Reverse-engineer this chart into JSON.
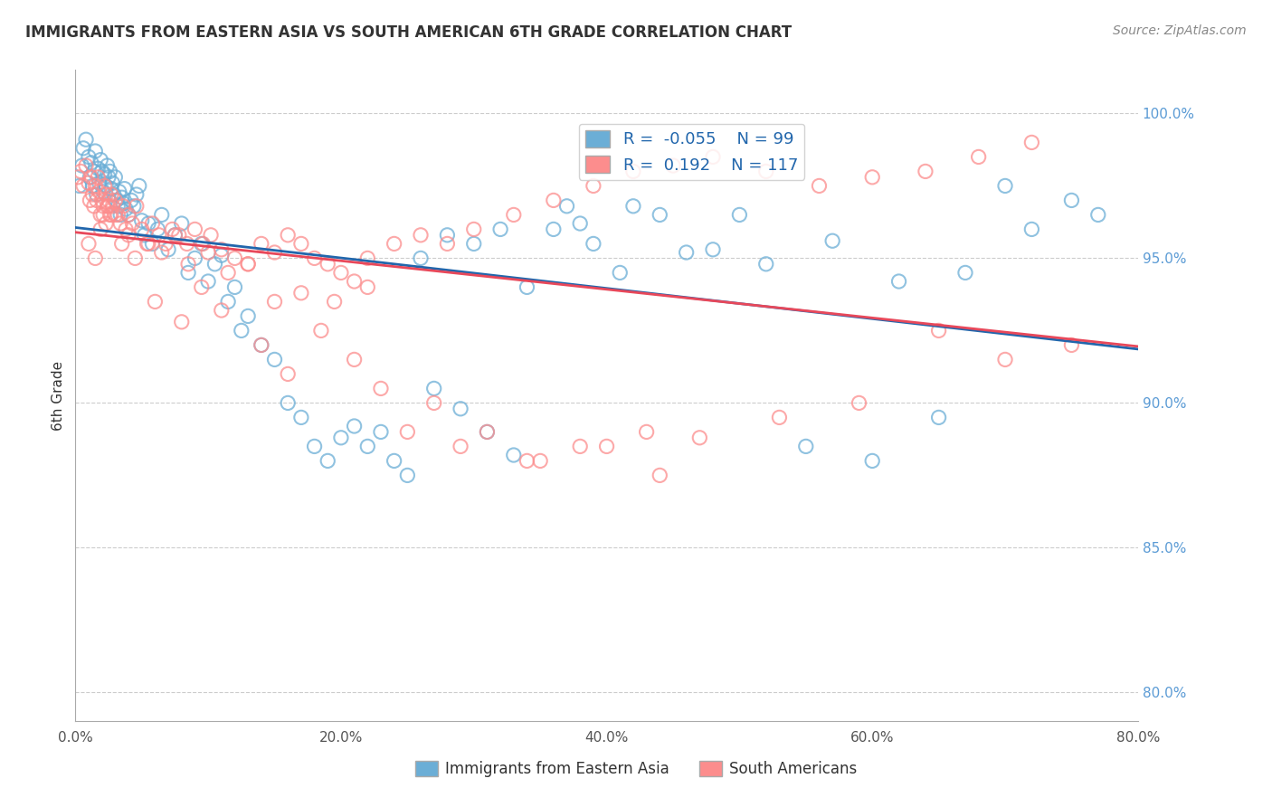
{
  "title": "IMMIGRANTS FROM EASTERN ASIA VS SOUTH AMERICAN 6TH GRADE CORRELATION CHART",
  "source": "Source: ZipAtlas.com",
  "xlabel_bottom": "",
  "ylabel": "6th Grade",
  "x_tick_labels": [
    "0.0%",
    "20.0%",
    "40.0%",
    "60.0%",
    "80.0%"
  ],
  "x_tick_values": [
    0.0,
    20.0,
    40.0,
    60.0,
    80.0
  ],
  "y_tick_labels_right": [
    "100.0%",
    "95.0%",
    "90.0%",
    "85.0%",
    "80.0%"
  ],
  "y_tick_values_right": [
    100.0,
    95.0,
    90.0,
    85.0,
    80.0
  ],
  "xlim": [
    0.0,
    80.0
  ],
  "ylim": [
    79.0,
    101.5
  ],
  "blue_R": -0.055,
  "blue_N": 99,
  "pink_R": 0.192,
  "pink_N": 117,
  "blue_color": "#6baed6",
  "pink_color": "#fc8d8d",
  "blue_line_color": "#2166ac",
  "pink_line_color": "#e8485a",
  "legend_label_blue": "Immigrants from Eastern Asia",
  "legend_label_pink": "South Americans",
  "blue_scatter_x": [
    0.3,
    0.5,
    0.6,
    0.8,
    1.0,
    1.1,
    1.2,
    1.3,
    1.4,
    1.5,
    1.6,
    1.7,
    1.8,
    1.9,
    2.0,
    2.1,
    2.2,
    2.3,
    2.4,
    2.5,
    2.6,
    2.7,
    2.8,
    2.9,
    3.0,
    3.1,
    3.2,
    3.3,
    3.4,
    3.5,
    3.6,
    3.7,
    3.8,
    4.0,
    4.2,
    4.4,
    4.6,
    4.8,
    5.0,
    5.2,
    5.5,
    5.8,
    6.2,
    6.5,
    7.0,
    7.5,
    8.0,
    8.5,
    9.0,
    9.5,
    10.0,
    10.5,
    11.0,
    11.5,
    12.0,
    12.5,
    13.0,
    14.0,
    15.0,
    16.0,
    17.0,
    18.0,
    19.0,
    20.0,
    21.0,
    22.0,
    23.0,
    24.0,
    25.0,
    27.0,
    29.0,
    31.0,
    33.0,
    36.0,
    39.0,
    42.0,
    46.0,
    50.0,
    55.0,
    60.0,
    65.0,
    70.0,
    75.0,
    38.0,
    44.0,
    28.0,
    32.0,
    48.0,
    52.0,
    57.0,
    62.0,
    67.0,
    72.0,
    77.0,
    26.0,
    30.0,
    34.0,
    37.0,
    41.0
  ],
  "blue_scatter_y": [
    97.5,
    98.2,
    98.8,
    99.1,
    98.5,
    97.8,
    98.3,
    97.5,
    98.0,
    98.7,
    97.2,
    98.1,
    97.6,
    98.4,
    98.0,
    97.3,
    97.9,
    97.5,
    98.2,
    97.8,
    98.0,
    97.4,
    97.6,
    97.2,
    97.8,
    97.0,
    96.8,
    97.3,
    96.5,
    97.1,
    96.9,
    97.4,
    96.7,
    96.5,
    97.0,
    96.8,
    97.2,
    97.5,
    96.3,
    95.8,
    96.2,
    95.5,
    96.0,
    96.5,
    95.3,
    95.8,
    96.2,
    94.5,
    95.0,
    95.5,
    94.2,
    94.8,
    95.1,
    93.5,
    94.0,
    92.5,
    93.0,
    92.0,
    91.5,
    90.0,
    89.5,
    88.5,
    88.0,
    88.8,
    89.2,
    88.5,
    89.0,
    88.0,
    87.5,
    90.5,
    89.8,
    89.0,
    88.2,
    96.0,
    95.5,
    96.8,
    95.2,
    96.5,
    88.5,
    88.0,
    89.5,
    97.5,
    97.0,
    96.2,
    96.5,
    95.8,
    96.0,
    95.3,
    94.8,
    95.6,
    94.2,
    94.5,
    96.0,
    96.5,
    95.0,
    95.5,
    94.0,
    96.8,
    94.5
  ],
  "pink_scatter_x": [
    0.2,
    0.4,
    0.6,
    0.8,
    1.0,
    1.1,
    1.2,
    1.3,
    1.4,
    1.5,
    1.6,
    1.7,
    1.8,
    1.9,
    2.0,
    2.1,
    2.2,
    2.3,
    2.4,
    2.5,
    2.6,
    2.7,
    2.8,
    3.0,
    3.2,
    3.4,
    3.6,
    3.8,
    4.0,
    4.3,
    4.6,
    5.0,
    5.4,
    5.8,
    6.3,
    6.8,
    7.3,
    7.8,
    8.4,
    9.0,
    9.6,
    10.2,
    11.0,
    12.0,
    13.0,
    14.0,
    15.0,
    16.0,
    17.0,
    18.0,
    19.0,
    20.0,
    21.0,
    22.0,
    24.0,
    26.0,
    28.0,
    30.0,
    33.0,
    36.0,
    39.0,
    42.0,
    45.0,
    48.0,
    52.0,
    56.0,
    60.0,
    64.0,
    68.0,
    72.0,
    1.9,
    2.1,
    2.3,
    2.5,
    2.7,
    3.5,
    4.5,
    5.5,
    6.5,
    7.5,
    8.5,
    10.0,
    11.5,
    13.0,
    15.0,
    17.0,
    19.5,
    22.0,
    25.0,
    29.0,
    34.0,
    38.0,
    43.0,
    47.0,
    53.0,
    59.0,
    65.0,
    70.0,
    75.0,
    1.0,
    1.5,
    3.0,
    4.0,
    6.0,
    8.0,
    9.5,
    11.0,
    14.0,
    16.0,
    18.5,
    21.0,
    23.0,
    27.0,
    31.0,
    35.0,
    40.0,
    44.0
  ],
  "pink_scatter_y": [
    97.8,
    98.0,
    97.5,
    98.2,
    97.6,
    97.0,
    97.8,
    97.2,
    96.8,
    97.5,
    97.0,
    97.8,
    97.3,
    96.5,
    97.0,
    96.8,
    97.5,
    97.2,
    96.8,
    97.0,
    96.5,
    97.2,
    96.8,
    97.0,
    96.5,
    96.2,
    96.8,
    96.0,
    96.5,
    96.2,
    96.8,
    96.0,
    95.5,
    96.2,
    95.8,
    95.5,
    96.0,
    95.8,
    95.5,
    96.0,
    95.5,
    95.8,
    95.3,
    95.0,
    94.8,
    95.5,
    95.2,
    95.8,
    95.5,
    95.0,
    94.8,
    94.5,
    94.2,
    95.0,
    95.5,
    95.8,
    95.5,
    96.0,
    96.5,
    97.0,
    97.5,
    98.0,
    98.2,
    98.5,
    98.0,
    97.5,
    97.8,
    98.0,
    98.5,
    99.0,
    96.0,
    96.5,
    96.2,
    96.8,
    96.5,
    95.5,
    95.0,
    95.5,
    95.2,
    95.8,
    94.8,
    95.2,
    94.5,
    94.8,
    93.5,
    93.8,
    93.5,
    94.0,
    89.0,
    88.5,
    88.0,
    88.5,
    89.0,
    88.8,
    89.5,
    90.0,
    92.5,
    91.5,
    92.0,
    95.5,
    95.0,
    96.5,
    95.8,
    93.5,
    92.8,
    94.0,
    93.2,
    92.0,
    91.0,
    92.5,
    91.5,
    90.5,
    90.0,
    89.0,
    88.0,
    88.5,
    87.5
  ]
}
